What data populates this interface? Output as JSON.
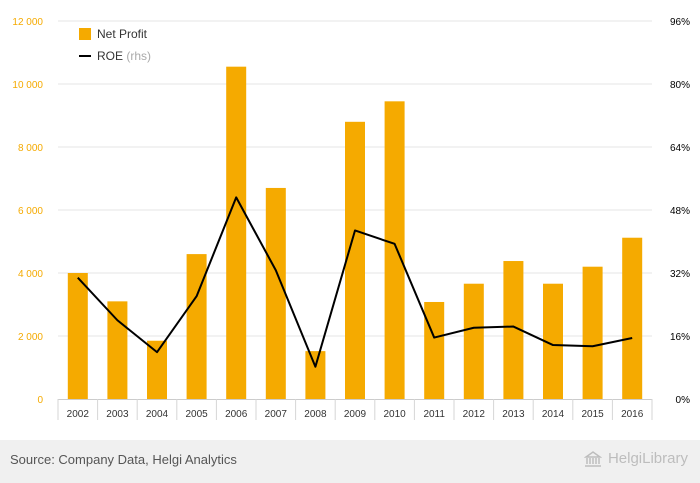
{
  "chart_data": {
    "type": "bar",
    "categories": [
      "2002",
      "2003",
      "2004",
      "2005",
      "2006",
      "2007",
      "2008",
      "2009",
      "2010",
      "2011",
      "2012",
      "2013",
      "2014",
      "2015",
      "2016"
    ],
    "series": [
      {
        "name": "Net Profit",
        "type": "bar",
        "axis": "left",
        "color": "#f5aa00",
        "values": [
          4000,
          3100,
          1850,
          4600,
          10550,
          6700,
          1520,
          8800,
          9450,
          3080,
          3660,
          4380,
          3660,
          4200,
          5120
        ]
      },
      {
        "name": "ROE",
        "name_suffix": "(rhs)",
        "type": "line",
        "axis": "right",
        "color": "#000000",
        "values": [
          30.8,
          20.0,
          11.9,
          26.1,
          51.2,
          32.7,
          8.2,
          42.8,
          39.4,
          15.6,
          18.1,
          18.4,
          13.7,
          13.4,
          15.5
        ]
      }
    ],
    "ylim_left": [
      0,
      12000
    ],
    "yticks_left": [
      "0",
      "2 000",
      "4 000",
      "6 000",
      "8 000",
      "10 000",
      "12 000"
    ],
    "ylim_right": [
      0,
      96
    ],
    "yticks_right": [
      "0%",
      "16%",
      "32%",
      "48%",
      "64%",
      "80%",
      "96%"
    ],
    "grid": true,
    "legend_position": "top-left",
    "colors": {
      "bar": "#f5aa00",
      "line": "#000000",
      "left_tick_text": "#f5aa00",
      "right_tick_text": "#000000",
      "grid": "#e6e6e6"
    }
  },
  "footer": {
    "source": "Source: Company Data, Helgi Analytics",
    "brand": "HelgiLibrary",
    "brand_icon": "library-building-icon"
  }
}
